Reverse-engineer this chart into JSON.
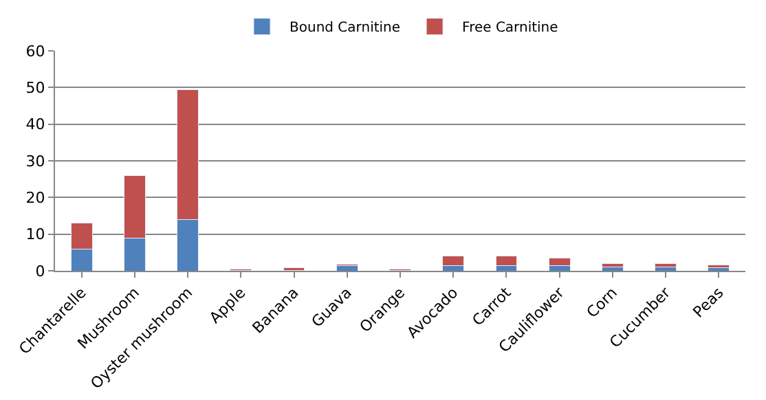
{
  "chart_data": {
    "type": "bar",
    "stacked": true,
    "categories": [
      "Chantarelle",
      "Mushroom",
      "Oyster mushroom",
      "Apple",
      "Banana",
      "Guava",
      "Orange",
      "Avocado",
      "Carrot",
      "Cauliflower",
      "Corn",
      "Cucumber",
      "Peas"
    ],
    "series": [
      {
        "name": "Bound Carnitine",
        "color": "#4f81bd",
        "values": [
          6,
          9,
          14,
          0.1,
          0.1,
          1.5,
          0.1,
          1.5,
          1.5,
          1.5,
          1,
          1,
          0.8
        ]
      },
      {
        "name": "Free Carnitine",
        "color": "#c0504d",
        "values": [
          7,
          17,
          35.5,
          0.4,
          0.8,
          0.3,
          0.4,
          2.5,
          2.5,
          2,
          1,
          1,
          0.8
        ]
      }
    ],
    "ylim": [
      0,
      60
    ],
    "yticks": [
      0,
      10,
      20,
      30,
      40,
      50,
      60
    ],
    "grid": "y",
    "legend": "top"
  }
}
